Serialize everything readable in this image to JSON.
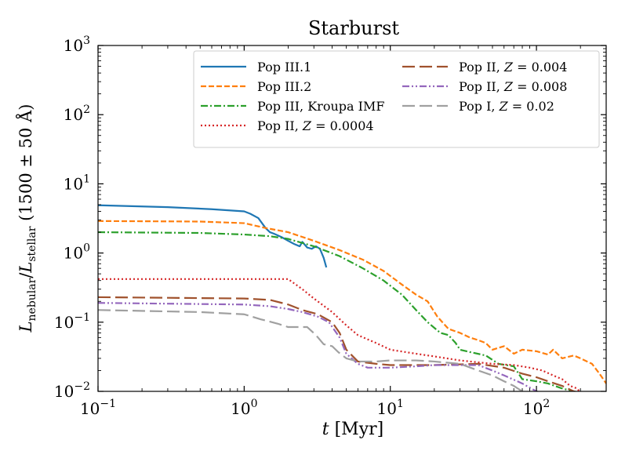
{
  "chart_data": {
    "type": "line",
    "title": "Starburst",
    "xlabel": "t [Myr]",
    "ylabel": "L_nebular/L_stellar (1500±50 Å)",
    "xscale": "log",
    "yscale": "log",
    "xlim": [
      0.1,
      300
    ],
    "ylim": [
      0.01,
      1000
    ],
    "x_ticks": [
      {
        "value": 0.1,
        "base": "10",
        "exp": "−1"
      },
      {
        "value": 1,
        "base": "10",
        "exp": "0"
      },
      {
        "value": 10,
        "base": "10",
        "exp": "1"
      },
      {
        "value": 100,
        "base": "10",
        "exp": "2"
      }
    ],
    "y_ticks": [
      {
        "value": 0.01,
        "base": "10",
        "exp": "−2"
      },
      {
        "value": 0.1,
        "base": "10",
        "exp": "−1"
      },
      {
        "value": 1,
        "base": "10",
        "exp": "0"
      },
      {
        "value": 10,
        "base": "10",
        "exp": "1"
      },
      {
        "value": 100,
        "base": "10",
        "exp": "2"
      },
      {
        "value": 1000,
        "base": "10",
        "exp": "3"
      }
    ],
    "legend_position": "top-right",
    "series": [
      {
        "name": "Pop III.1",
        "color": "#1f77b4",
        "dash": "solid",
        "points": [
          [
            0.1,
            4.9
          ],
          [
            0.3,
            4.6
          ],
          [
            0.6,
            4.3
          ],
          [
            1.0,
            4.0
          ],
          [
            1.1,
            3.7
          ],
          [
            1.25,
            3.2
          ],
          [
            1.4,
            2.3
          ],
          [
            1.5,
            2.0
          ],
          [
            1.6,
            1.9
          ],
          [
            1.8,
            1.7
          ],
          [
            2.0,
            1.5
          ],
          [
            2.2,
            1.35
          ],
          [
            2.4,
            1.25
          ],
          [
            2.5,
            1.45
          ],
          [
            2.7,
            1.2
          ],
          [
            2.9,
            1.15
          ],
          [
            3.1,
            1.25
          ],
          [
            3.3,
            1.15
          ],
          [
            3.5,
            0.85
          ],
          [
            3.65,
            0.62
          ]
        ]
      },
      {
        "name": "Pop III.2",
        "color": "#ff7f0e",
        "dash": "dashed",
        "points": [
          [
            0.1,
            2.9
          ],
          [
            0.5,
            2.85
          ],
          [
            1.0,
            2.7
          ],
          [
            1.4,
            2.3
          ],
          [
            2.0,
            2.0
          ],
          [
            3.0,
            1.5
          ],
          [
            4.5,
            1.1
          ],
          [
            6.5,
            0.8
          ],
          [
            9,
            0.55
          ],
          [
            12,
            0.35
          ],
          [
            15,
            0.25
          ],
          [
            18,
            0.2
          ],
          [
            21,
            0.12
          ],
          [
            25,
            0.08
          ],
          [
            30,
            0.07
          ],
          [
            35,
            0.06
          ],
          [
            40,
            0.055
          ],
          [
            45,
            0.05
          ],
          [
            50,
            0.04
          ],
          [
            60,
            0.045
          ],
          [
            70,
            0.035
          ],
          [
            80,
            0.04
          ],
          [
            100,
            0.038
          ],
          [
            120,
            0.034
          ],
          [
            130,
            0.04
          ],
          [
            150,
            0.03
          ],
          [
            180,
            0.033
          ],
          [
            200,
            0.03
          ],
          [
            240,
            0.025
          ],
          [
            270,
            0.018
          ],
          [
            300,
            0.013
          ]
        ]
      },
      {
        "name": "Pop III, Kroupa IMF",
        "color": "#2ca02c",
        "dash": "dashdot",
        "points": [
          [
            0.1,
            2.0
          ],
          [
            0.5,
            1.95
          ],
          [
            1.0,
            1.85
          ],
          [
            1.5,
            1.75
          ],
          [
            2.0,
            1.6
          ],
          [
            3.0,
            1.25
          ],
          [
            4.5,
            0.9
          ],
          [
            6.5,
            0.6
          ],
          [
            9,
            0.4
          ],
          [
            12,
            0.25
          ],
          [
            15,
            0.15
          ],
          [
            18,
            0.1
          ],
          [
            22,
            0.07
          ],
          [
            25,
            0.065
          ],
          [
            28,
            0.05
          ],
          [
            30,
            0.04
          ],
          [
            35,
            0.037
          ],
          [
            45,
            0.033
          ],
          [
            55,
            0.025
          ],
          [
            70,
            0.023
          ],
          [
            80,
            0.015
          ],
          [
            100,
            0.014
          ],
          [
            120,
            0.013
          ],
          [
            150,
            0.011
          ],
          [
            180,
            0.01
          ],
          [
            200,
            0.0095
          ]
        ]
      },
      {
        "name": "Pop II, Z = 0.0004",
        "name_prefix": "Pop II, ",
        "name_var": "Z",
        "name_value": " = 0.0004",
        "color": "#d62728",
        "dash": "dotted",
        "points": [
          [
            0.1,
            0.42
          ],
          [
            2.0,
            0.42
          ],
          [
            2.5,
            0.3
          ],
          [
            3.0,
            0.22
          ],
          [
            4.0,
            0.14
          ],
          [
            5.0,
            0.09
          ],
          [
            6.0,
            0.065
          ],
          [
            8.0,
            0.05
          ],
          [
            10,
            0.04
          ],
          [
            15,
            0.035
          ],
          [
            20,
            0.032
          ],
          [
            30,
            0.028
          ],
          [
            50,
            0.025
          ],
          [
            70,
            0.024
          ],
          [
            90,
            0.022
          ],
          [
            110,
            0.02
          ],
          [
            130,
            0.017
          ],
          [
            150,
            0.015
          ],
          [
            170,
            0.012
          ],
          [
            190,
            0.011
          ],
          [
            200,
            0.0095
          ]
        ]
      },
      {
        "name": "Pop II, Z = 0.004",
        "name_prefix": "Pop II, ",
        "name_var": "Z",
        "name_value": " = 0.004",
        "color": "#a0522d",
        "dash": "longdash",
        "points": [
          [
            0.1,
            0.23
          ],
          [
            1.0,
            0.22
          ],
          [
            1.5,
            0.21
          ],
          [
            2.0,
            0.18
          ],
          [
            2.5,
            0.15
          ],
          [
            3.2,
            0.13
          ],
          [
            4.0,
            0.1
          ],
          [
            4.5,
            0.07
          ],
          [
            5.0,
            0.04
          ],
          [
            6.0,
            0.027
          ],
          [
            8.0,
            0.025
          ],
          [
            10,
            0.024
          ],
          [
            20,
            0.024
          ],
          [
            40,
            0.025
          ],
          [
            60,
            0.022
          ],
          [
            80,
            0.018
          ],
          [
            100,
            0.016
          ],
          [
            120,
            0.014
          ],
          [
            150,
            0.012
          ],
          [
            180,
            0.01
          ],
          [
            200,
            0.0095
          ]
        ]
      },
      {
        "name": "Pop II, Z = 0.008",
        "name_prefix": "Pop II, ",
        "name_var": "Z",
        "name_value": " = 0.008",
        "color": "#9467bd",
        "dash": "dashdotdot",
        "points": [
          [
            0.1,
            0.19
          ],
          [
            1.0,
            0.18
          ],
          [
            1.5,
            0.17
          ],
          [
            2.0,
            0.155
          ],
          [
            2.5,
            0.14
          ],
          [
            3.2,
            0.12
          ],
          [
            3.8,
            0.1
          ],
          [
            4.5,
            0.06
          ],
          [
            5.0,
            0.035
          ],
          [
            6.0,
            0.025
          ],
          [
            7.0,
            0.022
          ],
          [
            8.0,
            0.022
          ],
          [
            10,
            0.022
          ],
          [
            15,
            0.023
          ],
          [
            20,
            0.024
          ],
          [
            30,
            0.024
          ],
          [
            40,
            0.024
          ],
          [
            50,
            0.02
          ],
          [
            60,
            0.017
          ],
          [
            80,
            0.013
          ],
          [
            100,
            0.01
          ],
          [
            110,
            0.0095
          ]
        ]
      },
      {
        "name": "Pop I, Z = 0.02",
        "name_prefix": "Pop I, ",
        "name_var": "Z",
        "name_value": " = 0.02",
        "color": "#a0a0a0",
        "dash": "longdash",
        "points": [
          [
            0.1,
            0.15
          ],
          [
            0.5,
            0.14
          ],
          [
            1.0,
            0.13
          ],
          [
            1.3,
            0.11
          ],
          [
            1.7,
            0.095
          ],
          [
            2.0,
            0.085
          ],
          [
            2.7,
            0.085
          ],
          [
            3.1,
            0.065
          ],
          [
            3.5,
            0.048
          ],
          [
            4.0,
            0.045
          ],
          [
            4.4,
            0.037
          ],
          [
            5.0,
            0.03
          ],
          [
            6.0,
            0.027
          ],
          [
            8.0,
            0.027
          ],
          [
            10,
            0.028
          ],
          [
            15,
            0.028
          ],
          [
            20,
            0.027
          ],
          [
            30,
            0.025
          ],
          [
            40,
            0.02
          ],
          [
            50,
            0.017
          ],
          [
            60,
            0.014
          ],
          [
            70,
            0.012
          ],
          [
            80,
            0.01
          ],
          [
            85,
            0.0095
          ]
        ]
      }
    ]
  }
}
